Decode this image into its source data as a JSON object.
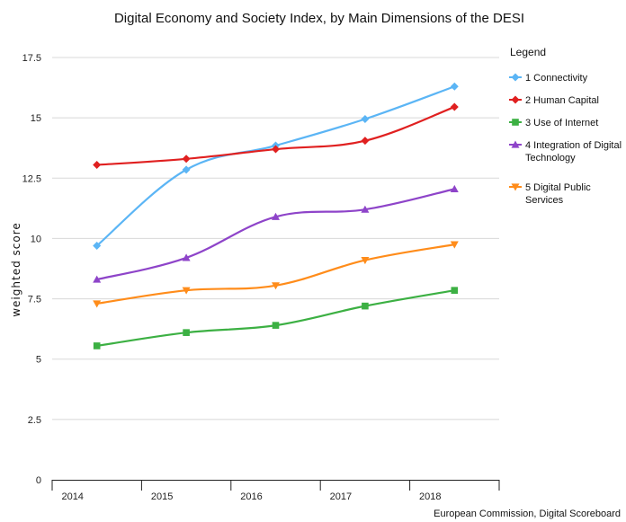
{
  "chart_data": {
    "type": "line",
    "title": "Digital Economy and Society Index, by Main Dimensions of the DESI",
    "xlabel": "",
    "ylabel": "weighted score",
    "ylim": [
      0,
      17.5
    ],
    "y_ticks": [
      "0",
      "2.5",
      "5",
      "7.5",
      "10",
      "12.5",
      "15",
      "17.5"
    ],
    "categories": [
      "2014",
      "2015",
      "2016",
      "2017",
      "2018"
    ],
    "grid": true,
    "legend": {
      "title": "Legend",
      "position": "right"
    },
    "source": "European Commission, Digital Scoreboard",
    "series": [
      {
        "name": "1 Connectivity",
        "color": "#5bb5f5",
        "marker": "diamond",
        "values": [
          9.7,
          12.85,
          13.85,
          14.95,
          16.3
        ]
      },
      {
        "name": "2 Human Capital",
        "color": "#e02020",
        "marker": "diamond",
        "values": [
          13.05,
          13.3,
          13.7,
          14.05,
          15.45
        ]
      },
      {
        "name": "3 Use of Internet",
        "color": "#3cb043",
        "marker": "square",
        "values": [
          5.55,
          6.1,
          6.4,
          7.2,
          7.85
        ]
      },
      {
        "name": "4 Integration of Digital Technology",
        "color": "#8e44c9",
        "marker": "triangle",
        "values": [
          8.3,
          9.2,
          10.9,
          11.2,
          12.05
        ]
      },
      {
        "name": "5 Digital Public Services",
        "color": "#ff8c1a",
        "marker": "triangle-down",
        "values": [
          7.3,
          7.85,
          8.05,
          9.1,
          9.75
        ]
      }
    ]
  }
}
